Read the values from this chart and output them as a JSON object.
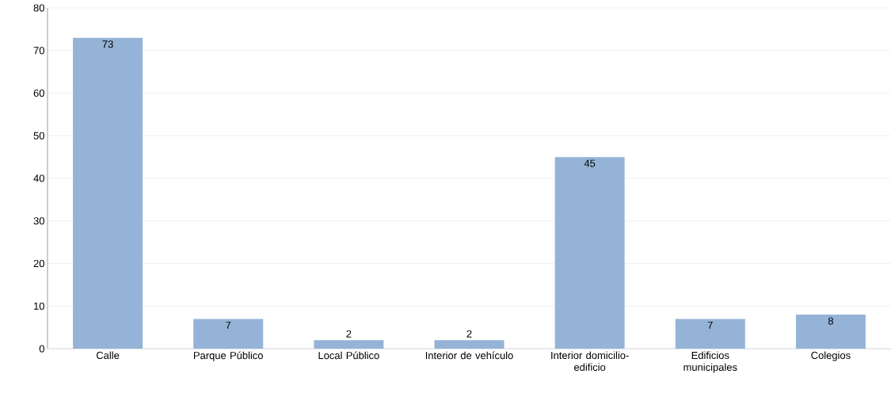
{
  "chart_data": {
    "type": "bar",
    "categories": [
      "Calle",
      "Parque Público",
      "Local Público",
      "Interior de vehículo",
      "Interior domicilio-edificio",
      "Edificios municipales",
      "Colegios"
    ],
    "values": [
      73,
      7,
      2,
      2,
      45,
      7,
      8
    ],
    "color": "#95b3d7",
    "ylim": [
      0,
      80
    ],
    "yticks": [
      0,
      10,
      20,
      30,
      40,
      50,
      60,
      70,
      80
    ],
    "grid": "y",
    "data_labels": true
  }
}
